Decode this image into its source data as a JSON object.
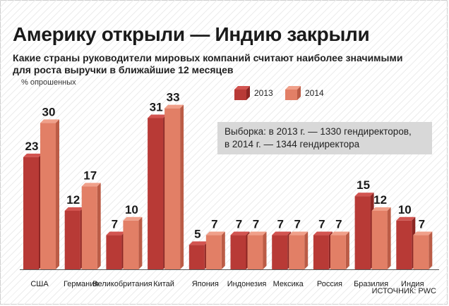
{
  "title": "Америку открыли — Индию закрыли",
  "subtitle": "Какие страны руководители мировых компаний считают наиболее значимыми для роста выручки в ближайшие 12 месяцев",
  "unit": "% опрошенных",
  "legend": [
    "2013",
    "2014"
  ],
  "note": {
    "line1": "Выборка: в 2013 г. — 1330 гендиректоров,",
    "line2": "в 2014 г. — 1344 гендиректора"
  },
  "source": "ИСТОЧНИК: PWC",
  "colors": {
    "s2013_front": "#b83a36",
    "s2013_side": "#8d2623",
    "s2013_top": "#d25450",
    "s2014_front": "#e27f66",
    "s2014_side": "#bb5c46",
    "s2014_top": "#f0a08a"
  },
  "chart_data": {
    "type": "bar",
    "title": "Америку открыли — Индию закрыли",
    "categories": [
      "США",
      "Германия",
      "Великобритания",
      "Китай",
      "Япония",
      "Индонезия",
      "Мексика",
      "Россия",
      "Бразилия",
      "Индия"
    ],
    "series": [
      {
        "name": "2013",
        "values": [
          23,
          12,
          7,
          31,
          5,
          7,
          7,
          7,
          15,
          10
        ]
      },
      {
        "name": "2014",
        "values": [
          30,
          17,
          10,
          33,
          7,
          7,
          7,
          7,
          12,
          7
        ]
      }
    ],
    "ylabel": "% опрошенных",
    "ylim": [
      0,
      35
    ],
    "grid": false,
    "legend_position": "top-right"
  }
}
